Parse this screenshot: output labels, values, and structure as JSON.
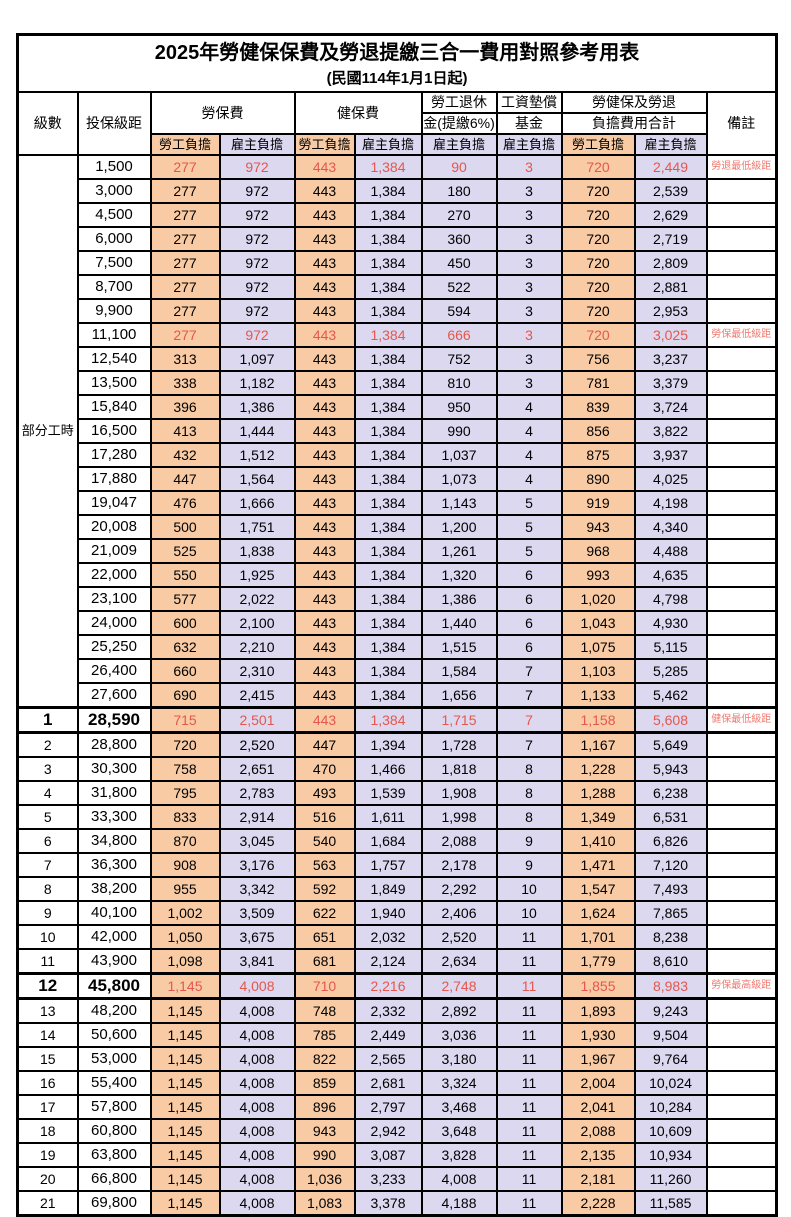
{
  "title": "2025年勞健保保費及勞退提繳三合一費用對照參考用表",
  "subtitle": "(民國114年1月1日起)",
  "header": {
    "level": "級數",
    "bracket": "投保級距",
    "labor_insurance": "勞保費",
    "health_insurance": "健保費",
    "pension_line1": "勞工退休",
    "pension_line2": "金(提繳6%)",
    "wage_fund_line1": "工資墊償",
    "wage_fund_line2": "基金",
    "total_line1": "勞健保及勞退",
    "total_line2": "負擔費用合計",
    "employee_burden": "勞工負擔",
    "employer_burden": "雇主負擔",
    "remark": "備註"
  },
  "part_time_label": "部分工時",
  "part_time_rowspan": 23,
  "colors": {
    "employee_bg": "#F8CBA4",
    "employer_bg": "#DBD8F0",
    "highlight_red": "#E5574C",
    "remark_red": "#EE7A70"
  },
  "rows": [
    {
      "level": "",
      "bracket": "1,500",
      "labor_emp": "277",
      "labor_er": "972",
      "health_emp": "443",
      "health_er": "1,384",
      "pension_er": "90",
      "fund_er": "3",
      "total_emp": "720",
      "total_er": "2,449",
      "remark": "勞退最低級距",
      "red": true
    },
    {
      "level": "",
      "bracket": "3,000",
      "labor_emp": "277",
      "labor_er": "972",
      "health_emp": "443",
      "health_er": "1,384",
      "pension_er": "180",
      "fund_er": "3",
      "total_emp": "720",
      "total_er": "2,539",
      "remark": ""
    },
    {
      "level": "",
      "bracket": "4,500",
      "labor_emp": "277",
      "labor_er": "972",
      "health_emp": "443",
      "health_er": "1,384",
      "pension_er": "270",
      "fund_er": "3",
      "total_emp": "720",
      "total_er": "2,629",
      "remark": ""
    },
    {
      "level": "",
      "bracket": "6,000",
      "labor_emp": "277",
      "labor_er": "972",
      "health_emp": "443",
      "health_er": "1,384",
      "pension_er": "360",
      "fund_er": "3",
      "total_emp": "720",
      "total_er": "2,719",
      "remark": ""
    },
    {
      "level": "",
      "bracket": "7,500",
      "labor_emp": "277",
      "labor_er": "972",
      "health_emp": "443",
      "health_er": "1,384",
      "pension_er": "450",
      "fund_er": "3",
      "total_emp": "720",
      "total_er": "2,809",
      "remark": ""
    },
    {
      "level": "",
      "bracket": "8,700",
      "labor_emp": "277",
      "labor_er": "972",
      "health_emp": "443",
      "health_er": "1,384",
      "pension_er": "522",
      "fund_er": "3",
      "total_emp": "720",
      "total_er": "2,881",
      "remark": ""
    },
    {
      "level": "",
      "bracket": "9,900",
      "labor_emp": "277",
      "labor_er": "972",
      "health_emp": "443",
      "health_er": "1,384",
      "pension_er": "594",
      "fund_er": "3",
      "total_emp": "720",
      "total_er": "2,953",
      "remark": ""
    },
    {
      "level": "",
      "bracket": "11,100",
      "labor_emp": "277",
      "labor_er": "972",
      "health_emp": "443",
      "health_er": "1,384",
      "pension_er": "666",
      "fund_er": "3",
      "total_emp": "720",
      "total_er": "3,025",
      "remark": "勞保最低級距",
      "red": true
    },
    {
      "level": "",
      "bracket": "12,540",
      "labor_emp": "313",
      "labor_er": "1,097",
      "health_emp": "443",
      "health_er": "1,384",
      "pension_er": "752",
      "fund_er": "3",
      "total_emp": "756",
      "total_er": "3,237",
      "remark": ""
    },
    {
      "level": "",
      "bracket": "13,500",
      "labor_emp": "338",
      "labor_er": "1,182",
      "health_emp": "443",
      "health_er": "1,384",
      "pension_er": "810",
      "fund_er": "3",
      "total_emp": "781",
      "total_er": "3,379",
      "remark": ""
    },
    {
      "level": "",
      "bracket": "15,840",
      "labor_emp": "396",
      "labor_er": "1,386",
      "health_emp": "443",
      "health_er": "1,384",
      "pension_er": "950",
      "fund_er": "4",
      "total_emp": "839",
      "total_er": "3,724",
      "remark": ""
    },
    {
      "level": "",
      "bracket": "16,500",
      "labor_emp": "413",
      "labor_er": "1,444",
      "health_emp": "443",
      "health_er": "1,384",
      "pension_er": "990",
      "fund_er": "4",
      "total_emp": "856",
      "total_er": "3,822",
      "remark": ""
    },
    {
      "level": "",
      "bracket": "17,280",
      "labor_emp": "432",
      "labor_er": "1,512",
      "health_emp": "443",
      "health_er": "1,384",
      "pension_er": "1,037",
      "fund_er": "4",
      "total_emp": "875",
      "total_er": "3,937",
      "remark": ""
    },
    {
      "level": "",
      "bracket": "17,880",
      "labor_emp": "447",
      "labor_er": "1,564",
      "health_emp": "443",
      "health_er": "1,384",
      "pension_er": "1,073",
      "fund_er": "4",
      "total_emp": "890",
      "total_er": "4,025",
      "remark": ""
    },
    {
      "level": "",
      "bracket": "19,047",
      "labor_emp": "476",
      "labor_er": "1,666",
      "health_emp": "443",
      "health_er": "1,384",
      "pension_er": "1,143",
      "fund_er": "5",
      "total_emp": "919",
      "total_er": "4,198",
      "remark": ""
    },
    {
      "level": "",
      "bracket": "20,008",
      "labor_emp": "500",
      "labor_er": "1,751",
      "health_emp": "443",
      "health_er": "1,384",
      "pension_er": "1,200",
      "fund_er": "5",
      "total_emp": "943",
      "total_er": "4,340",
      "remark": ""
    },
    {
      "level": "",
      "bracket": "21,009",
      "labor_emp": "525",
      "labor_er": "1,838",
      "health_emp": "443",
      "health_er": "1,384",
      "pension_er": "1,261",
      "fund_er": "5",
      "total_emp": "968",
      "total_er": "4,488",
      "remark": ""
    },
    {
      "level": "",
      "bracket": "22,000",
      "labor_emp": "550",
      "labor_er": "1,925",
      "health_emp": "443",
      "health_er": "1,384",
      "pension_er": "1,320",
      "fund_er": "6",
      "total_emp": "993",
      "total_er": "4,635",
      "remark": ""
    },
    {
      "level": "",
      "bracket": "23,100",
      "labor_emp": "577",
      "labor_er": "2,022",
      "health_emp": "443",
      "health_er": "1,384",
      "pension_er": "1,386",
      "fund_er": "6",
      "total_emp": "1,020",
      "total_er": "4,798",
      "remark": ""
    },
    {
      "level": "",
      "bracket": "24,000",
      "labor_emp": "600",
      "labor_er": "2,100",
      "health_emp": "443",
      "health_er": "1,384",
      "pension_er": "1,440",
      "fund_er": "6",
      "total_emp": "1,043",
      "total_er": "4,930",
      "remark": ""
    },
    {
      "level": "",
      "bracket": "25,250",
      "labor_emp": "632",
      "labor_er": "2,210",
      "health_emp": "443",
      "health_er": "1,384",
      "pension_er": "1,515",
      "fund_er": "6",
      "total_emp": "1,075",
      "total_er": "5,115",
      "remark": ""
    },
    {
      "level": "",
      "bracket": "26,400",
      "labor_emp": "660",
      "labor_er": "2,310",
      "health_emp": "443",
      "health_er": "1,384",
      "pension_er": "1,584",
      "fund_er": "7",
      "total_emp": "1,103",
      "total_er": "5,285",
      "remark": ""
    },
    {
      "level": "",
      "bracket": "27,600",
      "labor_emp": "690",
      "labor_er": "2,415",
      "health_emp": "443",
      "health_er": "1,384",
      "pension_er": "1,656",
      "fund_er": "7",
      "total_emp": "1,133",
      "total_er": "5,462",
      "remark": ""
    },
    {
      "level": "1",
      "bracket": "28,590",
      "labor_emp": "715",
      "labor_er": "2,501",
      "health_emp": "443",
      "health_er": "1,384",
      "pension_er": "1,715",
      "fund_er": "7",
      "total_emp": "1,158",
      "total_er": "5,608",
      "remark": "健保最低級距",
      "red": true,
      "emph": true
    },
    {
      "level": "2",
      "bracket": "28,800",
      "labor_emp": "720",
      "labor_er": "2,520",
      "health_emp": "447",
      "health_er": "1,394",
      "pension_er": "1,728",
      "fund_er": "7",
      "total_emp": "1,167",
      "total_er": "5,649",
      "remark": ""
    },
    {
      "level": "3",
      "bracket": "30,300",
      "labor_emp": "758",
      "labor_er": "2,651",
      "health_emp": "470",
      "health_er": "1,466",
      "pension_er": "1,818",
      "fund_er": "8",
      "total_emp": "1,228",
      "total_er": "5,943",
      "remark": ""
    },
    {
      "level": "4",
      "bracket": "31,800",
      "labor_emp": "795",
      "labor_er": "2,783",
      "health_emp": "493",
      "health_er": "1,539",
      "pension_er": "1,908",
      "fund_er": "8",
      "total_emp": "1,288",
      "total_er": "6,238",
      "remark": ""
    },
    {
      "level": "5",
      "bracket": "33,300",
      "labor_emp": "833",
      "labor_er": "2,914",
      "health_emp": "516",
      "health_er": "1,611",
      "pension_er": "1,998",
      "fund_er": "8",
      "total_emp": "1,349",
      "total_er": "6,531",
      "remark": ""
    },
    {
      "level": "6",
      "bracket": "34,800",
      "labor_emp": "870",
      "labor_er": "3,045",
      "health_emp": "540",
      "health_er": "1,684",
      "pension_er": "2,088",
      "fund_er": "9",
      "total_emp": "1,410",
      "total_er": "6,826",
      "remark": ""
    },
    {
      "level": "7",
      "bracket": "36,300",
      "labor_emp": "908",
      "labor_er": "3,176",
      "health_emp": "563",
      "health_er": "1,757",
      "pension_er": "2,178",
      "fund_er": "9",
      "total_emp": "1,471",
      "total_er": "7,120",
      "remark": ""
    },
    {
      "level": "8",
      "bracket": "38,200",
      "labor_emp": "955",
      "labor_er": "3,342",
      "health_emp": "592",
      "health_er": "1,849",
      "pension_er": "2,292",
      "fund_er": "10",
      "total_emp": "1,547",
      "total_er": "7,493",
      "remark": ""
    },
    {
      "level": "9",
      "bracket": "40,100",
      "labor_emp": "1,002",
      "labor_er": "3,509",
      "health_emp": "622",
      "health_er": "1,940",
      "pension_er": "2,406",
      "fund_er": "10",
      "total_emp": "1,624",
      "total_er": "7,865",
      "remark": ""
    },
    {
      "level": "10",
      "bracket": "42,000",
      "labor_emp": "1,050",
      "labor_er": "3,675",
      "health_emp": "651",
      "health_er": "2,032",
      "pension_er": "2,520",
      "fund_er": "11",
      "total_emp": "1,701",
      "total_er": "8,238",
      "remark": ""
    },
    {
      "level": "11",
      "bracket": "43,900",
      "labor_emp": "1,098",
      "labor_er": "3,841",
      "health_emp": "681",
      "health_er": "2,124",
      "pension_er": "2,634",
      "fund_er": "11",
      "total_emp": "1,779",
      "total_er": "8,610",
      "remark": ""
    },
    {
      "level": "12",
      "bracket": "45,800",
      "labor_emp": "1,145",
      "labor_er": "4,008",
      "health_emp": "710",
      "health_er": "2,216",
      "pension_er": "2,748",
      "fund_er": "11",
      "total_emp": "1,855",
      "total_er": "8,983",
      "remark": "勞保最高級距",
      "red": true,
      "emph": true
    },
    {
      "level": "13",
      "bracket": "48,200",
      "labor_emp": "1,145",
      "labor_er": "4,008",
      "health_emp": "748",
      "health_er": "2,332",
      "pension_er": "2,892",
      "fund_er": "11",
      "total_emp": "1,893",
      "total_er": "9,243",
      "remark": ""
    },
    {
      "level": "14",
      "bracket": "50,600",
      "labor_emp": "1,145",
      "labor_er": "4,008",
      "health_emp": "785",
      "health_er": "2,449",
      "pension_er": "3,036",
      "fund_er": "11",
      "total_emp": "1,930",
      "total_er": "9,504",
      "remark": ""
    },
    {
      "level": "15",
      "bracket": "53,000",
      "labor_emp": "1,145",
      "labor_er": "4,008",
      "health_emp": "822",
      "health_er": "2,565",
      "pension_er": "3,180",
      "fund_er": "11",
      "total_emp": "1,967",
      "total_er": "9,764",
      "remark": ""
    },
    {
      "level": "16",
      "bracket": "55,400",
      "labor_emp": "1,145",
      "labor_er": "4,008",
      "health_emp": "859",
      "health_er": "2,681",
      "pension_er": "3,324",
      "fund_er": "11",
      "total_emp": "2,004",
      "total_er": "10,024",
      "remark": ""
    },
    {
      "level": "17",
      "bracket": "57,800",
      "labor_emp": "1,145",
      "labor_er": "4,008",
      "health_emp": "896",
      "health_er": "2,797",
      "pension_er": "3,468",
      "fund_er": "11",
      "total_emp": "2,041",
      "total_er": "10,284",
      "remark": ""
    },
    {
      "level": "18",
      "bracket": "60,800",
      "labor_emp": "1,145",
      "labor_er": "4,008",
      "health_emp": "943",
      "health_er": "2,942",
      "pension_er": "3,648",
      "fund_er": "11",
      "total_emp": "2,088",
      "total_er": "10,609",
      "remark": ""
    },
    {
      "level": "19",
      "bracket": "63,800",
      "labor_emp": "1,145",
      "labor_er": "4,008",
      "health_emp": "990",
      "health_er": "3,087",
      "pension_er": "3,828",
      "fund_er": "11",
      "total_emp": "2,135",
      "total_er": "10,934",
      "remark": ""
    },
    {
      "level": "20",
      "bracket": "66,800",
      "labor_emp": "1,145",
      "labor_er": "4,008",
      "health_emp": "1,036",
      "health_er": "3,233",
      "pension_er": "4,008",
      "fund_er": "11",
      "total_emp": "2,181",
      "total_er": "11,260",
      "remark": ""
    },
    {
      "level": "21",
      "bracket": "69,800",
      "labor_emp": "1,145",
      "labor_er": "4,008",
      "health_emp": "1,083",
      "health_er": "3,378",
      "pension_er": "4,188",
      "fund_er": "11",
      "total_emp": "2,228",
      "total_er": "11,585",
      "remark": ""
    }
  ]
}
